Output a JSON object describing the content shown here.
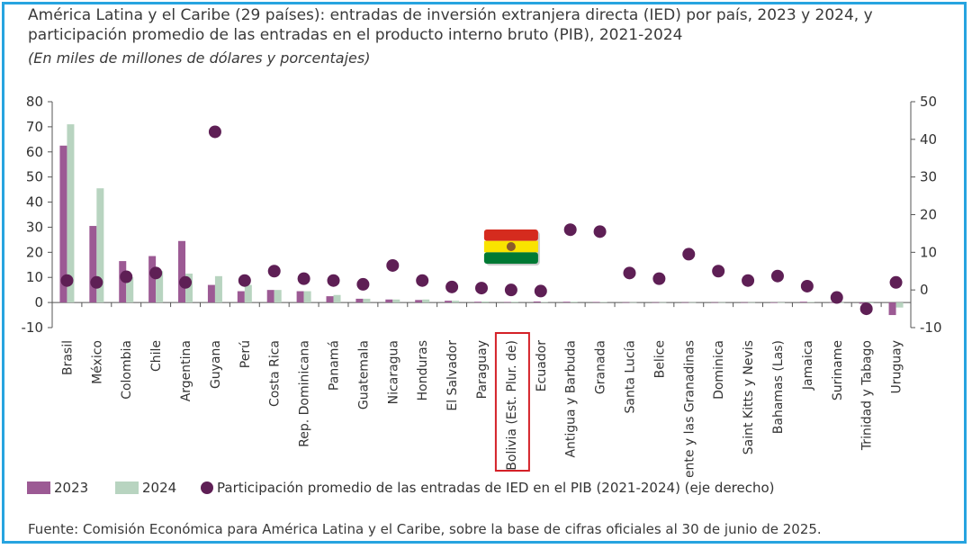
{
  "chart_data": {
    "type": "bar",
    "title": "América Latina y el Caribe (29 países): entradas de inversión extranjera directa (IED) por país, 2023 y 2024, y participación promedio de las entradas en el producto interno bruto (PIB), 2021-2024",
    "subtitle": "(En miles de millones de dólares y porcentajes)",
    "categories": [
      "Brasil",
      "México",
      "Colombia",
      "Chile",
      "Argentina",
      "Guyana",
      "Perú",
      "Costa Rica",
      "Rep. Dominicana",
      "Panamá",
      "Guatemala",
      "Nicaragua",
      "Honduras",
      "El Salvador",
      "Paraguay",
      "Bolivia (Est. Plur. de)",
      "Ecuador",
      "Antigua y Barbuda",
      "Granada",
      "Santa Lucía",
      "Belice",
      "San Vicente y las Granadinas",
      "Dominica",
      "Saint Kitts y Nevis",
      "Bahamas (Las)",
      "Jamaica",
      "Suriname",
      "Trinidad y Tabago",
      "Uruguay"
    ],
    "series": [
      {
        "name": "2023",
        "axis": "left",
        "color": "#9c5a94",
        "values": [
          62.5,
          30.5,
          16.5,
          18.5,
          24.5,
          7.0,
          4.5,
          5.0,
          4.5,
          2.5,
          1.5,
          1.2,
          1.0,
          0.7,
          0.3,
          0.2,
          0.4,
          0.3,
          0.2,
          0.1,
          0.1,
          0.1,
          0.1,
          0.1,
          0.05,
          0.3,
          0.05,
          -0.5,
          -5.0
        ]
      },
      {
        "name": "2024",
        "axis": "left",
        "color": "#b8d4c0",
        "values": [
          71.0,
          45.5,
          10.0,
          12.5,
          11.5,
          10.5,
          7.0,
          5.0,
          4.5,
          3.0,
          1.5,
          1.2,
          1.2,
          0.7,
          0.4,
          0.3,
          0.2,
          0.3,
          0.2,
          0.1,
          0.1,
          0.1,
          0.1,
          0.1,
          0.05,
          0.2,
          0.05,
          -0.3,
          -2.0
        ]
      },
      {
        "name": "Participación promedio de las entradas de IED en el PIB (2021-2024) (eje derecho)",
        "axis": "right",
        "type": "scatter",
        "color": "#5e1f55",
        "values": [
          2.5,
          2.0,
          3.5,
          4.5,
          2.0,
          42.0,
          2.5,
          5.0,
          3.0,
          2.5,
          1.5,
          6.5,
          2.5,
          0.8,
          0.5,
          0.0,
          -0.3,
          16.0,
          15.5,
          4.5,
          3.0,
          9.5,
          5.0,
          2.5,
          3.7,
          1.0,
          -2.0,
          -5.0,
          2.0
        ]
      }
    ],
    "left_axis": {
      "ylim": [
        -10,
        80
      ],
      "ticks": [
        -10,
        0,
        10,
        20,
        30,
        40,
        50,
        60,
        70,
        80
      ]
    },
    "right_axis": {
      "ylim": [
        -10,
        50
      ],
      "ticks": [
        -10,
        0,
        10,
        20,
        30,
        40,
        50
      ]
    },
    "highlight_category": "Bolivia (Est. Plur. de)",
    "grid": false,
    "legend_position": "bottom-left"
  },
  "legend": {
    "s2023": "2023",
    "s2024": "2024",
    "dots": "Participación promedio de las entradas de IED en el PIB (2021-2024) (eje derecho)"
  },
  "source": "Fuente:  Comisión Económica para América Latina y el Caribe, sobre la base de cifras oficiales al 30 de junio de 2025.",
  "colors": {
    "bar2023": "#9c5a94",
    "bar2024": "#b8d4c0",
    "dots": "#5e1f55",
    "highlight": "#d42027",
    "frame": "#27a4e0"
  },
  "flag_icon": "bolivia-flag-icon"
}
